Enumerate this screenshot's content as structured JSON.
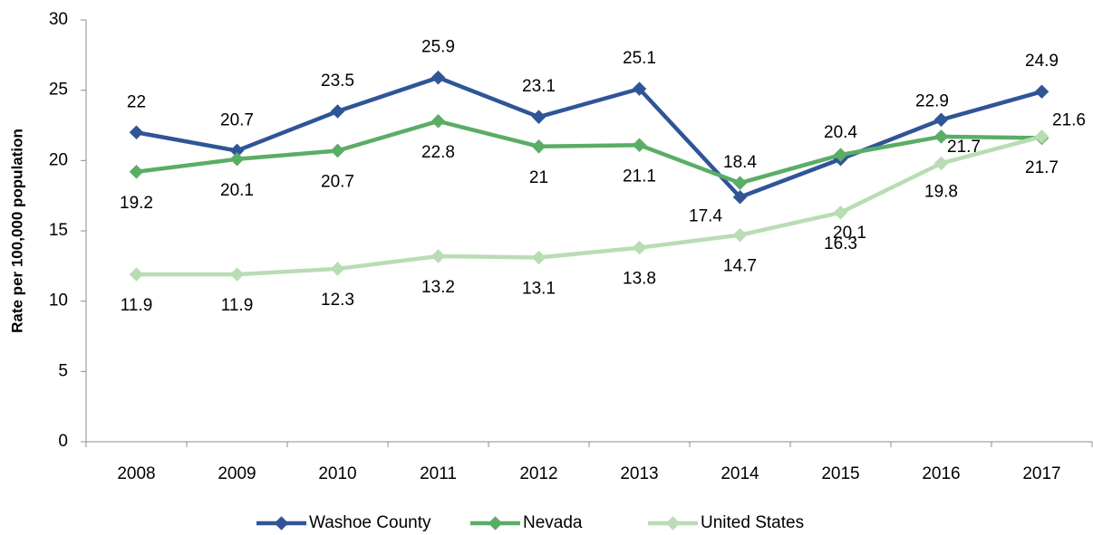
{
  "chart_data": {
    "type": "line",
    "y_label": "Rate per 100,000 population",
    "categories": [
      "2008",
      "2009",
      "2010",
      "2011",
      "2012",
      "2013",
      "2014",
      "2015",
      "2016",
      "2017"
    ],
    "series": [
      {
        "name": "Washoe County",
        "color": "#2f5597",
        "values": [
          22,
          20.7,
          23.5,
          25.9,
          23.1,
          25.1,
          17.4,
          20.1,
          22.9,
          24.9
        ]
      },
      {
        "name": "Nevada",
        "color": "#5aad65",
        "values": [
          19.2,
          20.1,
          20.7,
          22.8,
          21,
          21.1,
          18.4,
          20.4,
          21.7,
          21.6
        ]
      },
      {
        "name": "United States",
        "color": "#b9dcb4",
        "values": [
          11.9,
          11.9,
          12.3,
          13.2,
          13.1,
          13.8,
          14.7,
          16.3,
          19.8,
          21.7
        ]
      }
    ],
    "ylim": [
      0,
      30
    ],
    "yticks": [
      0,
      5,
      10,
      15,
      20,
      25,
      30
    ],
    "legend": "bottom"
  }
}
